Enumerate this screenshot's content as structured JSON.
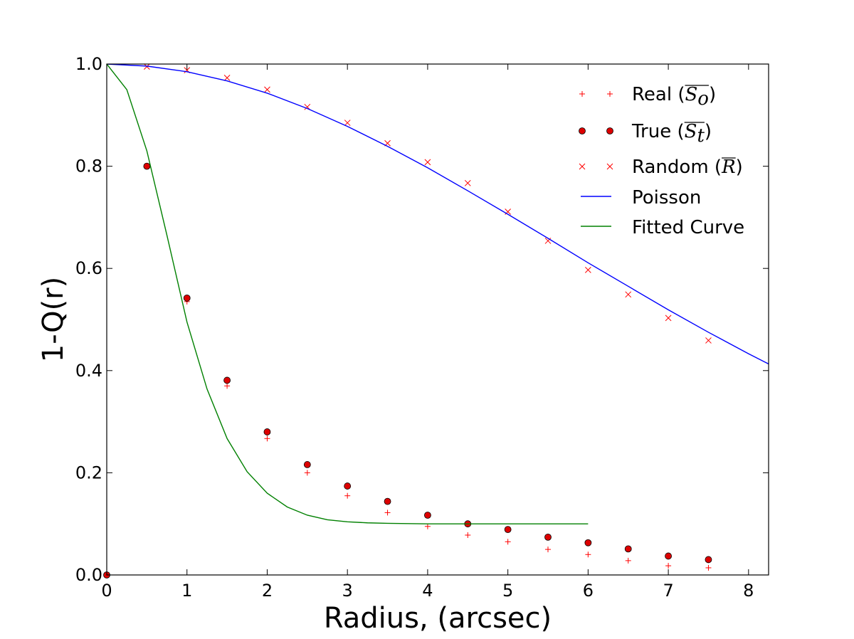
{
  "chart_data": {
    "type": "scatter",
    "xlabel": "Radius, (arcsec)",
    "ylabel": "1-Q(r)",
    "xlim": [
      0,
      8.25
    ],
    "ylim": [
      0,
      1.0
    ],
    "xticks": [
      "0",
      "1",
      "2",
      "3",
      "4",
      "5",
      "6",
      "7",
      "8"
    ],
    "yticks": [
      "0.0",
      "0.2",
      "0.4",
      "0.6",
      "0.8",
      "1.0"
    ],
    "grid": false,
    "legend_position": "top-right",
    "colors": {
      "markers": "#ff0000",
      "marker_fill": "#dd0000",
      "poisson": "#0000ff",
      "fitted": "#008000"
    },
    "series": [
      {
        "name": "Real",
        "name_math": "S",
        "name_sub": "o",
        "marker": "plus",
        "x": [
          0,
          0.5,
          1,
          1.5,
          2,
          2.5,
          3,
          3.5,
          4,
          4.5,
          5,
          5.5,
          6,
          6.5,
          7,
          7.5
        ],
        "y": [
          0.0,
          0.8,
          0.535,
          0.37,
          0.267,
          0.2,
          0.155,
          0.122,
          0.095,
          0.078,
          0.065,
          0.05,
          0.04,
          0.028,
          0.018,
          0.014
        ]
      },
      {
        "name": "True",
        "name_math": "S",
        "name_sub": "t",
        "marker": "circle",
        "x": [
          0,
          0.5,
          1,
          1.5,
          2,
          2.5,
          3,
          3.5,
          4,
          4.5,
          5,
          5.5,
          6,
          6.5,
          7,
          7.5
        ],
        "y": [
          0.0,
          0.8,
          0.542,
          0.381,
          0.28,
          0.216,
          0.174,
          0.144,
          0.117,
          0.1,
          0.089,
          0.074,
          0.063,
          0.051,
          0.037,
          0.03
        ]
      },
      {
        "name": "Random",
        "name_math": "R",
        "name_sub": "",
        "marker": "x",
        "x": [
          0.5,
          1,
          1.5,
          2,
          2.5,
          3,
          3.5,
          4,
          4.5,
          5,
          5.5,
          6,
          6.5,
          7,
          7.5
        ],
        "y": [
          0.995,
          0.988,
          0.973,
          0.95,
          0.916,
          0.885,
          0.845,
          0.808,
          0.767,
          0.711,
          0.654,
          0.597,
          0.549,
          0.503,
          0.459
        ]
      },
      {
        "name": "Poisson",
        "marker": "line",
        "x": [
          0,
          0.5,
          1,
          1.5,
          2,
          2.5,
          3,
          3.5,
          4,
          4.5,
          5,
          5.5,
          6,
          6.5,
          7,
          7.5,
          8,
          8.25
        ],
        "y": [
          1.0,
          0.996,
          0.985,
          0.967,
          0.943,
          0.913,
          0.878,
          0.839,
          0.797,
          0.752,
          0.706,
          0.659,
          0.611,
          0.565,
          0.519,
          0.475,
          0.433,
          0.413
        ]
      },
      {
        "name": "Fitted Curve",
        "marker": "line",
        "x": [
          0,
          0.25,
          0.5,
          0.75,
          1,
          1.25,
          1.5,
          1.75,
          2,
          2.25,
          2.5,
          2.75,
          3,
          3.25,
          3.5,
          4,
          4.5,
          5,
          5.5,
          6
        ],
        "y": [
          1.0,
          0.95,
          0.83,
          0.665,
          0.495,
          0.364,
          0.267,
          0.202,
          0.16,
          0.133,
          0.117,
          0.108,
          0.104,
          0.102,
          0.101,
          0.1,
          0.1,
          0.1,
          0.1,
          0.1
        ]
      }
    ]
  }
}
